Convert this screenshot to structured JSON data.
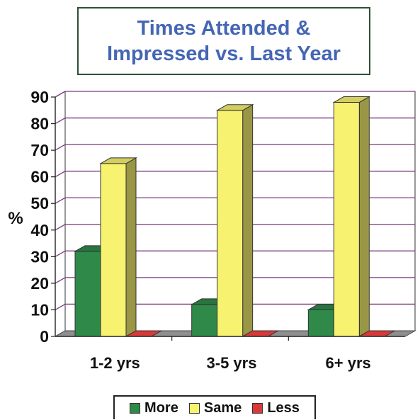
{
  "chart_data": {
    "type": "bar",
    "title": [
      "Times Attended &",
      "Impressed vs. Last Year"
    ],
    "ylabel": "%",
    "ylim": [
      0,
      90
    ],
    "yticks": [
      "0",
      "10",
      "20",
      "30",
      "40",
      "50",
      "60",
      "70",
      "80",
      "90"
    ],
    "categories": [
      "1-2 yrs",
      "3-5 yrs",
      "6+ yrs"
    ],
    "series": [
      {
        "name": "More",
        "values": [
          32,
          12,
          10
        ],
        "color": "#2f8a4a"
      },
      {
        "name": "Same",
        "values": [
          65,
          85,
          88
        ],
        "color": "#f7f270"
      },
      {
        "name": "Less",
        "values": [
          0,
          0,
          0
        ],
        "color": "#d83a3a"
      }
    ],
    "grid": true,
    "legend": "bottom",
    "colors": {
      "grid": "#7a3a7a",
      "floor": "#8f8f8f",
      "wall": "#ffffff",
      "title_text": "#4566b4"
    }
  }
}
